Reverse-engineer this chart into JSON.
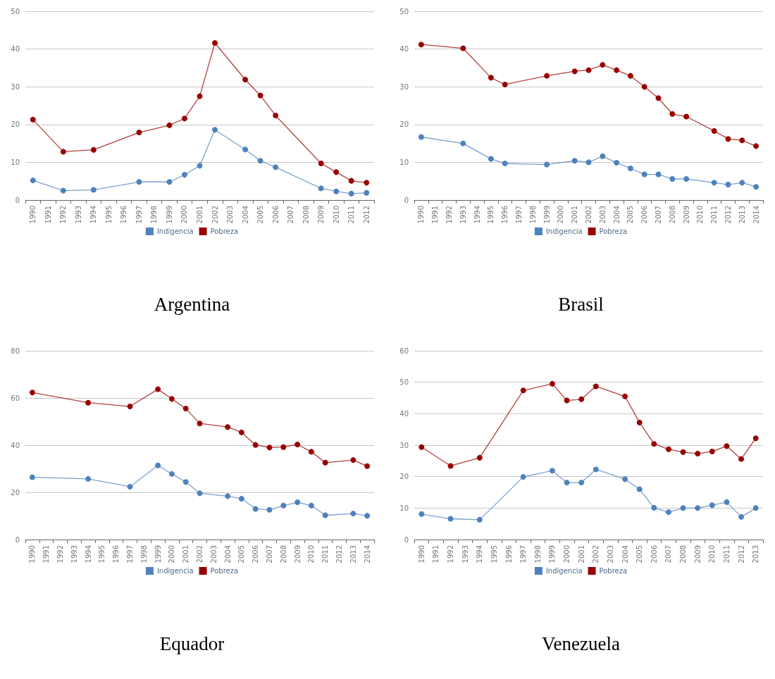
{
  "chart_data": [
    {
      "type": "line",
      "title": "Argentina",
      "categories": [
        "1990",
        "1991",
        "1992",
        "1993",
        "1994",
        "1995",
        "1996",
        "1997",
        "1998",
        "1999",
        "2000",
        "2001",
        "2002",
        "2003",
        "2004",
        "2005",
        "2006",
        "2007",
        "2008",
        "2009",
        "2010",
        "2011",
        "2012"
      ],
      "series": [
        {
          "name": "Indigencia",
          "color": "#4f81bd",
          "values": [
            5.2,
            null,
            2.5,
            null,
            2.7,
            null,
            null,
            4.8,
            null,
            4.8,
            6.7,
            9.1,
            18.6,
            null,
            13.4,
            10.4,
            8.7,
            null,
            null,
            3.1,
            2.3,
            1.7,
            1.9
          ]
        },
        {
          "name": "Pobreza",
          "color": "#990000",
          "values": [
            21.3,
            null,
            12.8,
            null,
            13.3,
            null,
            null,
            17.9,
            null,
            19.8,
            21.6,
            27.5,
            41.6,
            null,
            31.9,
            27.7,
            22.4,
            null,
            null,
            9.7,
            7.4,
            5.1,
            4.6
          ]
        }
      ],
      "ylim": [
        0,
        50
      ],
      "yticks": [
        0,
        10,
        20,
        30,
        40,
        50
      ],
      "grid": "y",
      "legend": "bottom",
      "marker": "circle"
    },
    {
      "type": "line",
      "title": "Brasil",
      "categories": [
        "1990",
        "1991",
        "1992",
        "1993",
        "1994",
        "1995",
        "1996",
        "1997",
        "1998",
        "1999",
        "2000",
        "2001",
        "2002",
        "2003",
        "2004",
        "2005",
        "2006",
        "2007",
        "2008",
        "2009",
        "2010",
        "2011",
        "2012",
        "2013",
        "2014"
      ],
      "series": [
        {
          "name": "Indigencia",
          "color": "#4f81bd",
          "values": [
            16.7,
            null,
            null,
            15.0,
            null,
            10.9,
            9.7,
            null,
            null,
            9.4,
            null,
            10.4,
            10.0,
            11.6,
            9.9,
            8.4,
            6.8,
            6.8,
            5.6,
            5.6,
            null,
            4.6,
            4.1,
            4.6,
            3.5
          ]
        },
        {
          "name": "Pobreza",
          "color": "#990000",
          "values": [
            41.2,
            null,
            null,
            40.2,
            null,
            32.4,
            30.6,
            null,
            null,
            32.9,
            null,
            34.1,
            34.4,
            35.8,
            34.4,
            32.9,
            30.0,
            27.0,
            22.8,
            22.1,
            null,
            18.3,
            16.2,
            15.8,
            14.3
          ]
        }
      ],
      "ylim": [
        0,
        50
      ],
      "yticks": [
        0,
        10,
        20,
        30,
        40,
        50
      ],
      "grid": "y",
      "legend": "bottom",
      "marker": "circle"
    },
    {
      "type": "line",
      "title": "Equador",
      "categories": [
        "1990",
        "1991",
        "1992",
        "1993",
        "1994",
        "1995",
        "1996",
        "1997",
        "1998",
        "1999",
        "2000",
        "2001",
        "2002",
        "2003",
        "2004",
        "2005",
        "2006",
        "2007",
        "2008",
        "2009",
        "2010",
        "2011",
        "2012",
        "2013",
        "2014"
      ],
      "series": [
        {
          "name": "Indigencia",
          "color": "#4f81bd",
          "values": [
            26.4,
            null,
            null,
            null,
            25.7,
            null,
            null,
            22.4,
            null,
            31.4,
            27.8,
            24.4,
            19.6,
            null,
            18.4,
            17.3,
            13.0,
            12.6,
            14.4,
            15.8,
            14.4,
            10.3,
            null,
            11.0,
            10.1
          ]
        },
        {
          "name": "Pobreza",
          "color": "#990000",
          "values": [
            62.3,
            null,
            null,
            null,
            58.0,
            null,
            null,
            56.4,
            null,
            63.7,
            59.6,
            55.5,
            49.2,
            null,
            47.7,
            45.4,
            40.1,
            39.0,
            39.2,
            40.3,
            37.2,
            32.6,
            null,
            33.7,
            31.1
          ]
        }
      ],
      "ylim": [
        0,
        80
      ],
      "yticks": [
        0,
        20,
        40,
        60,
        80
      ],
      "grid": "y",
      "legend": "bottom",
      "marker": "circle"
    },
    {
      "type": "line",
      "title": "Venezuela",
      "categories": [
        "1990",
        "1991",
        "1992",
        "1993",
        "1994",
        "1995",
        "1996",
        "1997",
        "1998",
        "1999",
        "2000",
        "2001",
        "2002",
        "2003",
        "2004",
        "2005",
        "2006",
        "2007",
        "2008",
        "2009",
        "2010",
        "2011",
        "2012",
        "2013"
      ],
      "series": [
        {
          "name": "Indigencia",
          "color": "#4f81bd",
          "values": [
            8.1,
            null,
            6.6,
            null,
            6.3,
            null,
            null,
            19.9,
            null,
            21.9,
            18.1,
            18.1,
            22.3,
            null,
            19.2,
            16.0,
            10.1,
            8.7,
            10.0,
            10.0,
            10.9,
            11.9,
            7.2,
            10.0
          ]
        },
        {
          "name": "Pobreza",
          "color": "#990000",
          "values": [
            29.4,
            null,
            23.4,
            null,
            26.0,
            null,
            null,
            47.4,
            null,
            49.5,
            44.2,
            44.6,
            48.7,
            null,
            45.5,
            37.2,
            30.4,
            28.7,
            27.8,
            27.3,
            28.0,
            29.7,
            25.6,
            32.2
          ]
        }
      ],
      "ylim": [
        0,
        60
      ],
      "yticks": [
        0,
        10,
        20,
        30,
        40,
        50,
        60
      ],
      "grid": "y",
      "legend": "bottom",
      "marker": "circle"
    }
  ]
}
